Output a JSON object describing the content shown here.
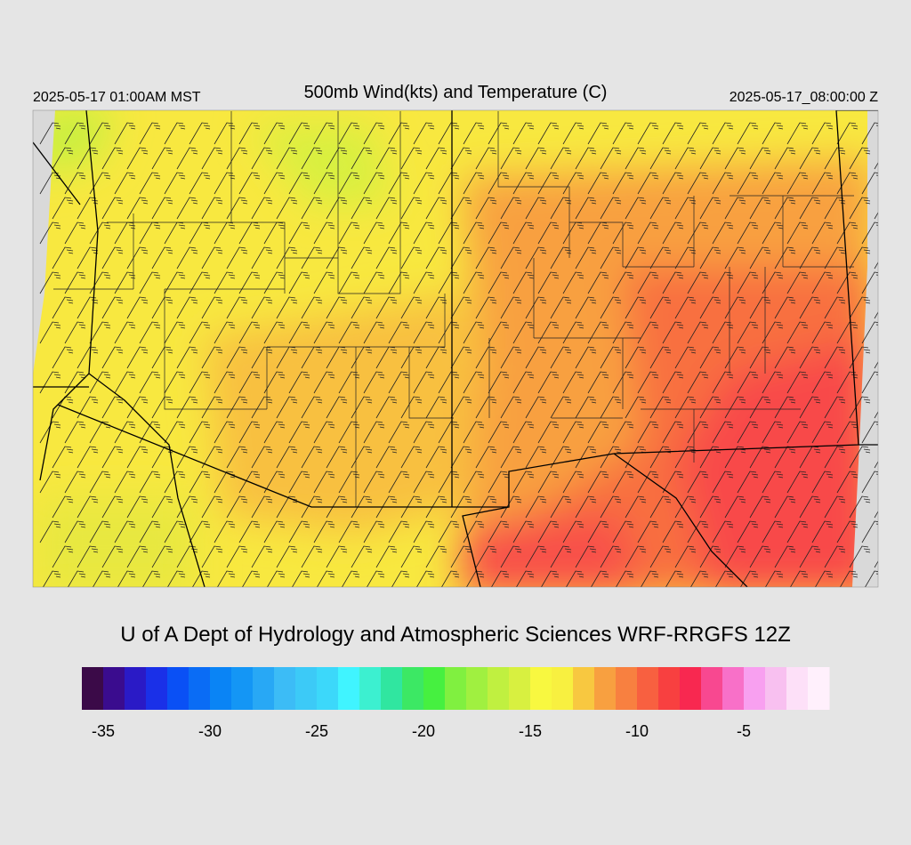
{
  "header": {
    "local_time": "2025-05-17 01:00AM MST",
    "title": "500mb Wind(kts) and Temperature (C)",
    "valid_time": "2025-05-17_08:00:00 Z"
  },
  "footer": {
    "credit": "U of A Dept of Hydrology and Atmospheric Sciences WRF-RRGFS 12Z"
  },
  "colorbar": {
    "lim": [
      -36,
      -1
    ],
    "colors": [
      "#3b0a48",
      "#3a0c8e",
      "#2a1ac6",
      "#1a30e8",
      "#0a50f5",
      "#0a6cf5",
      "#0a84f5",
      "#1496f5",
      "#28a8f5",
      "#3cbcf6",
      "#3ccaf7",
      "#3cd8fa",
      "#40f4ff",
      "#3cf0d0",
      "#30e6a0",
      "#3ce864",
      "#46f040",
      "#80f040",
      "#a0f040",
      "#c0f040",
      "#d8f040",
      "#f8f840",
      "#f8f040",
      "#f8c840",
      "#f8a040",
      "#f88040",
      "#f86040",
      "#f84040",
      "#f82850",
      "#f84890",
      "#f870c8",
      "#f8a0f0",
      "#f8c0f0",
      "#fde0f8",
      "#fff0fc"
    ],
    "ticks": [
      -35,
      -30,
      -25,
      -20,
      -15,
      -10,
      -5
    ]
  }
}
